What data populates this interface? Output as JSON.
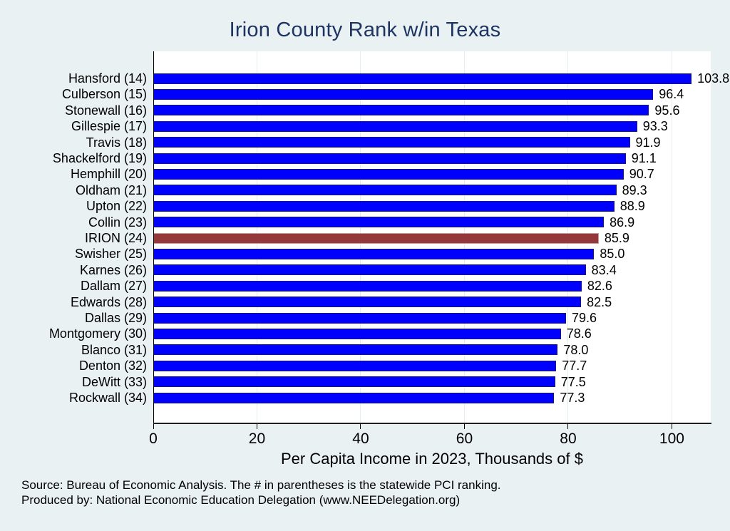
{
  "title": "Irion County Rank w/in Texas",
  "chart_data": {
    "type": "bar",
    "orientation": "horizontal",
    "title": "Irion County Rank w/in Texas",
    "xlabel": "Per Capita Income in 2023, Thousands of $",
    "xlim": [
      0,
      107.5
    ],
    "x_ticks": [
      0,
      20,
      40,
      60,
      80,
      100
    ],
    "grid": true,
    "legend": false,
    "categories": [
      "Hansford (14)",
      "Culberson (15)",
      "Stonewall (16)",
      "Gillespie (17)",
      "Travis (18)",
      "Shackelford (19)",
      "Hemphill (20)",
      "Oldham (21)",
      "Upton (22)",
      "Collin (23)",
      "IRION (24)",
      "Swisher (25)",
      "Karnes (26)",
      "Dallam (27)",
      "Edwards (28)",
      "Dallas (29)",
      "Montgomery (30)",
      "Blanco (31)",
      "Denton (32)",
      "DeWitt (33)",
      "Rockwall (34)"
    ],
    "values": [
      103.8,
      96.4,
      95.6,
      93.3,
      91.9,
      91.1,
      90.7,
      89.3,
      88.9,
      86.9,
      85.9,
      85.0,
      83.4,
      82.6,
      82.5,
      79.6,
      78.6,
      78.0,
      77.7,
      77.5,
      77.3
    ],
    "value_labels": [
      "103.8",
      "96.4",
      "95.6",
      "93.3",
      "91.9",
      "91.1",
      "90.7",
      "89.3",
      "88.9",
      "86.9",
      "85.9",
      "85.0",
      "83.4",
      "82.6",
      "82.5",
      "79.6",
      "78.6",
      "78.0",
      "77.7",
      "77.5",
      "77.3"
    ],
    "highlight_index": 10,
    "highlight_category": "IRION (24)",
    "colors": {
      "page_bg": "#eaf1f3",
      "plot_bg": "#ffffff",
      "grid_line": "#e4eef0",
      "title_color": "#1e3462",
      "bar_fill": "#0000ff",
      "bar_border": "#16167d",
      "highlight_fill": "#94383c",
      "highlight_border": "#c89a9b"
    }
  },
  "footer": {
    "line1": "Source: Bureau of Economic Analysis. The # in parentheses is the statewide PCI ranking.",
    "line2": "Produced by: National Economic Education Delegation (www.NEEDelegation.org)"
  }
}
